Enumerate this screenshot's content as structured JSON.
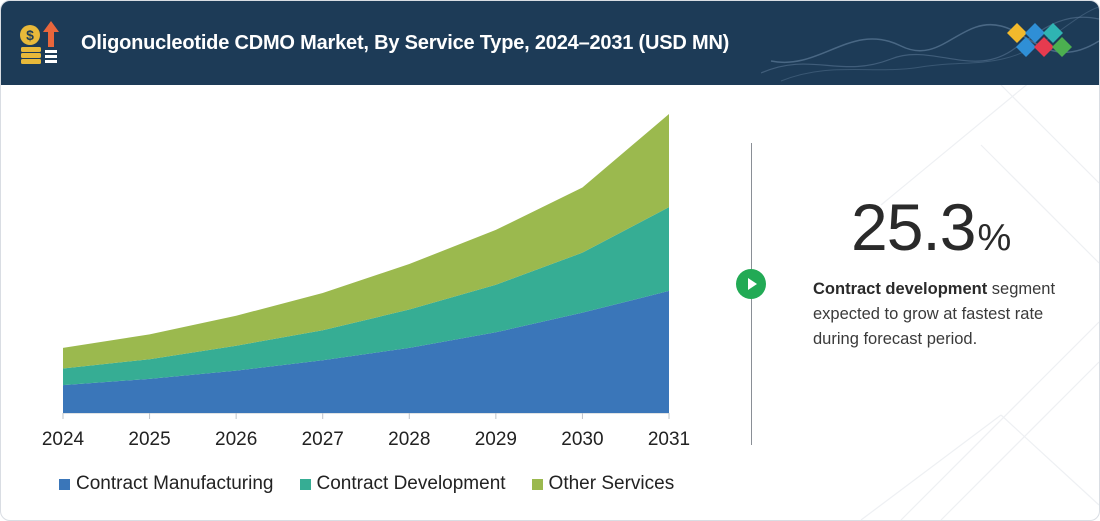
{
  "header": {
    "title": "Oligonucleotide CDMO Market, By Service Type, 2024–2031 (USD MN)"
  },
  "colors": {
    "header_bg": "#1d3b57",
    "contract_manufacturing": "#3a76b9",
    "contract_development": "#36ad94",
    "other_services": "#9bb94e",
    "accent_green": "#22aa55"
  },
  "chart_data": {
    "type": "area",
    "stacked": true,
    "categories": [
      "2024",
      "2025",
      "2026",
      "2027",
      "2028",
      "2029",
      "2030",
      "2031"
    ],
    "series": [
      {
        "name": "Contract Manufacturing",
        "color": "#3a76b9",
        "values": [
          27,
          33,
          41,
          51,
          63,
          78,
          97,
          118
        ]
      },
      {
        "name": "Contract Development",
        "color": "#36ad94",
        "values": [
          16,
          19,
          24,
          29,
          37,
          46,
          58,
          81
        ]
      },
      {
        "name": "Other Services",
        "color": "#9bb94e",
        "values": [
          20,
          24,
          29,
          36,
          44,
          53,
          63,
          90
        ]
      }
    ],
    "ylim": [
      0,
      290
    ],
    "legend_position": "bottom"
  },
  "highlight": {
    "value": "25.3",
    "unit": "%",
    "segment": "Contract development",
    "text": " segment expected to grow at fastest rate during forecast period."
  },
  "icons": {
    "header": "market-growth-icon",
    "badge": "play-icon",
    "logo": "brand-diamonds-icon"
  }
}
